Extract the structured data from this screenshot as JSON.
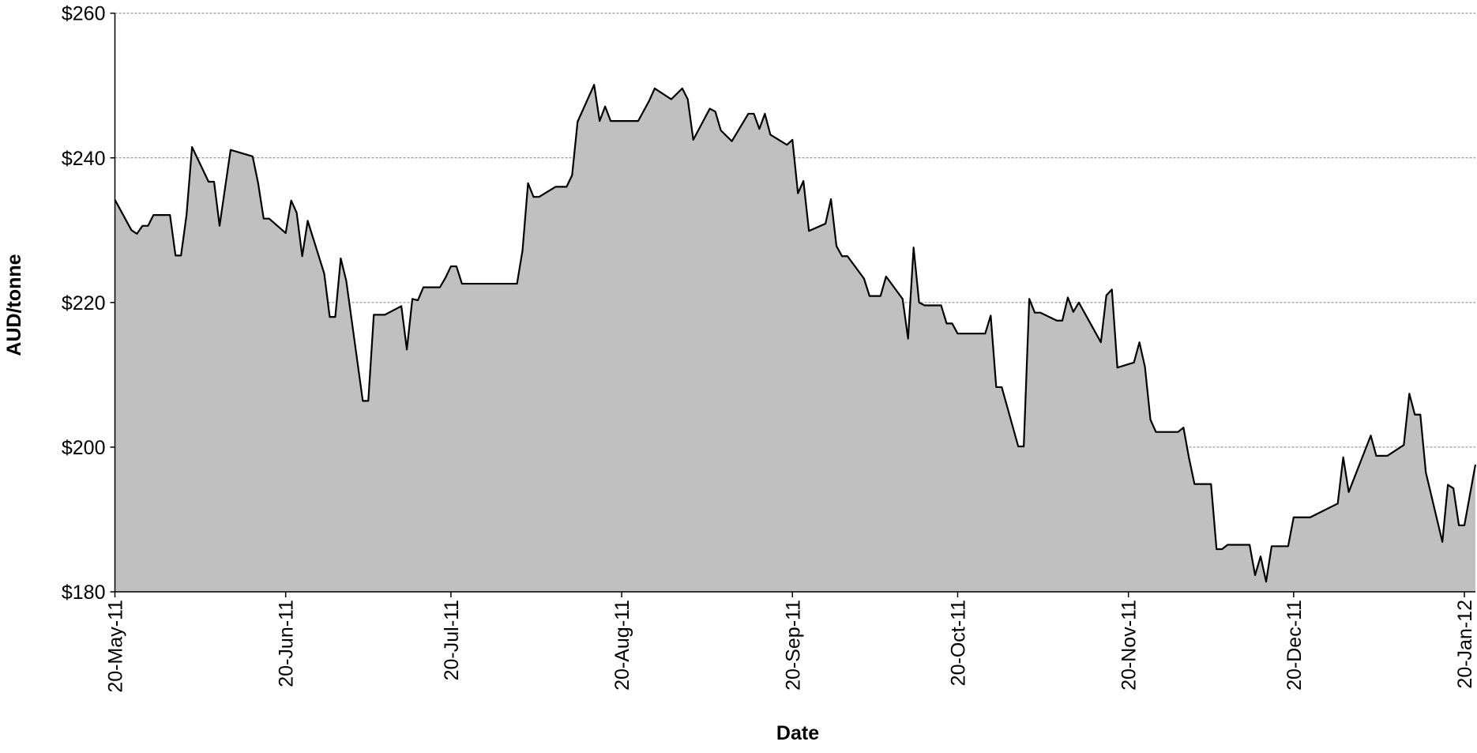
{
  "chart_data": {
    "type": "area",
    "xlabel": "Date",
    "ylabel": "AUD/tonne",
    "color": "#c0c0c0",
    "line_color": "#000000",
    "grid": true,
    "xlim": [
      "2011-05-20",
      "2012-01-22"
    ],
    "xticks": [
      {
        "value": "2011-05-20",
        "label": "20-May-11"
      },
      {
        "value": "2011-06-20",
        "label": "20-Jun-11"
      },
      {
        "value": "2011-07-20",
        "label": "20-Jul-11"
      },
      {
        "value": "2011-08-20",
        "label": "20-Aug-11"
      },
      {
        "value": "2011-09-20",
        "label": "20-Sep-11"
      },
      {
        "value": "2011-10-20",
        "label": "20-Oct-11"
      },
      {
        "value": "2011-11-20",
        "label": "20-Nov-11"
      },
      {
        "value": "2011-12-20",
        "label": "20-Dec-11"
      },
      {
        "value": "2012-01-20",
        "label": "20-Jan-12"
      }
    ],
    "ylim": [
      180,
      260
    ],
    "yticks": [
      {
        "value": 180,
        "label": "$180"
      },
      {
        "value": 200,
        "label": "$200"
      },
      {
        "value": 220,
        "label": "$220"
      },
      {
        "value": 240,
        "label": "$240"
      },
      {
        "value": 260,
        "label": "$260"
      }
    ],
    "x": [
      "2011-05-20",
      "2011-05-23",
      "2011-05-24",
      "2011-05-25",
      "2011-05-26",
      "2011-05-27",
      "2011-05-30",
      "2011-05-31",
      "2011-06-01",
      "2011-06-02",
      "2011-06-03",
      "2011-06-06",
      "2011-06-07",
      "2011-06-08",
      "2011-06-10",
      "2011-06-14",
      "2011-06-15",
      "2011-06-16",
      "2011-06-17",
      "2011-06-20",
      "2011-06-21",
      "2011-06-22",
      "2011-06-23",
      "2011-06-24",
      "2011-06-27",
      "2011-06-28",
      "2011-06-29",
      "2011-06-30",
      "2011-07-01",
      "2011-07-04",
      "2011-07-05",
      "2011-07-06",
      "2011-07-08",
      "2011-07-11",
      "2011-07-12",
      "2011-07-13",
      "2011-07-14",
      "2011-07-15",
      "2011-07-18",
      "2011-07-19",
      "2011-07-20",
      "2011-07-21",
      "2011-07-22",
      "2011-08-01",
      "2011-08-02",
      "2011-08-03",
      "2011-08-04",
      "2011-08-05",
      "2011-08-08",
      "2011-08-10",
      "2011-08-11",
      "2011-08-12",
      "2011-08-15",
      "2011-08-16",
      "2011-08-17",
      "2011-08-18",
      "2011-08-23",
      "2011-08-25",
      "2011-08-26",
      "2011-08-29",
      "2011-08-31",
      "2011-09-01",
      "2011-09-02",
      "2011-09-05",
      "2011-09-06",
      "2011-09-07",
      "2011-09-09",
      "2011-09-12",
      "2011-09-13",
      "2011-09-14",
      "2011-09-15",
      "2011-09-16",
      "2011-09-19",
      "2011-09-20",
      "2011-09-21",
      "2011-09-22",
      "2011-09-23",
      "2011-09-26",
      "2011-09-27",
      "2011-09-28",
      "2011-09-29",
      "2011-09-30",
      "2011-10-03",
      "2011-10-04",
      "2011-10-06",
      "2011-10-07",
      "2011-10-10",
      "2011-10-11",
      "2011-10-12",
      "2011-10-13",
      "2011-10-14",
      "2011-10-17",
      "2011-10-18",
      "2011-10-19",
      "2011-10-20",
      "2011-10-25",
      "2011-10-26",
      "2011-10-27",
      "2011-10-28",
      "2011-10-31",
      "2011-11-01",
      "2011-11-02",
      "2011-11-03",
      "2011-11-04",
      "2011-11-07",
      "2011-11-08",
      "2011-11-09",
      "2011-11-10",
      "2011-11-11",
      "2011-11-15",
      "2011-11-16",
      "2011-11-17",
      "2011-11-18",
      "2011-11-21",
      "2011-11-22",
      "2011-11-23",
      "2011-11-24",
      "2011-11-25",
      "2011-11-29",
      "2011-11-30",
      "2011-12-01",
      "2011-12-02",
      "2011-12-05",
      "2011-12-06",
      "2011-12-07",
      "2011-12-08",
      "2011-12-12",
      "2011-12-13",
      "2011-12-14",
      "2011-12-15",
      "2011-12-16",
      "2011-12-19",
      "2011-12-20",
      "2011-12-23",
      "2011-12-28",
      "2011-12-29",
      "2011-12-30",
      "2012-01-03",
      "2012-01-04",
      "2012-01-06",
      "2012-01-09",
      "2012-01-10",
      "2012-01-11",
      "2012-01-12",
      "2012-01-13",
      "2012-01-16",
      "2012-01-17",
      "2012-01-18",
      "2012-01-19",
      "2012-01-20",
      "2012-01-22"
    ],
    "values": [
      234.2,
      230.0,
      229.5,
      230.6,
      230.6,
      232.1,
      232.1,
      226.5,
      226.5,
      232.1,
      241.5,
      236.7,
      236.7,
      230.6,
      241.1,
      240.2,
      236.5,
      231.6,
      231.6,
      229.6,
      234.1,
      232.4,
      226.4,
      231.3,
      224.0,
      218.0,
      218.0,
      226.1,
      223.0,
      206.4,
      206.4,
      218.3,
      218.3,
      219.5,
      213.5,
      220.5,
      220.3,
      222.1,
      222.1,
      223.4,
      225.0,
      225.0,
      222.6,
      222.6,
      227.2,
      236.5,
      234.6,
      234.6,
      236.0,
      236.0,
      237.6,
      245.0,
      250.1,
      245.1,
      247.1,
      245.1,
      245.1,
      247.9,
      249.6,
      248.1,
      249.6,
      248.1,
      242.5,
      246.8,
      246.4,
      243.8,
      242.3,
      246.1,
      246.1,
      244.0,
      246.1,
      243.2,
      241.8,
      242.5,
      235.1,
      236.8,
      229.9,
      230.9,
      234.3,
      227.8,
      226.4,
      226.4,
      223.3,
      220.9,
      220.9,
      223.6,
      220.5,
      215.0,
      227.6,
      220.0,
      219.6,
      219.6,
      217.1,
      217.1,
      215.7,
      215.7,
      218.2,
      208.3,
      208.3,
      200.1,
      200.1,
      220.5,
      218.6,
      218.6,
      217.5,
      217.5,
      220.7,
      218.7,
      220.0,
      214.5,
      221.0,
      221.8,
      211.0,
      211.7,
      214.5,
      211.1,
      203.8,
      202.1,
      202.1,
      202.7,
      198.5,
      194.9,
      194.9,
      185.9,
      185.9,
      186.5,
      186.5,
      182.3,
      184.9,
      181.4,
      186.3,
      186.3,
      190.3,
      190.3,
      192.2,
      198.6,
      193.8,
      201.6,
      198.8,
      198.8,
      200.3,
      207.4,
      204.5,
      204.5,
      196.5,
      186.9,
      194.8,
      194.3,
      189.2,
      189.2,
      197.6
    ]
  }
}
